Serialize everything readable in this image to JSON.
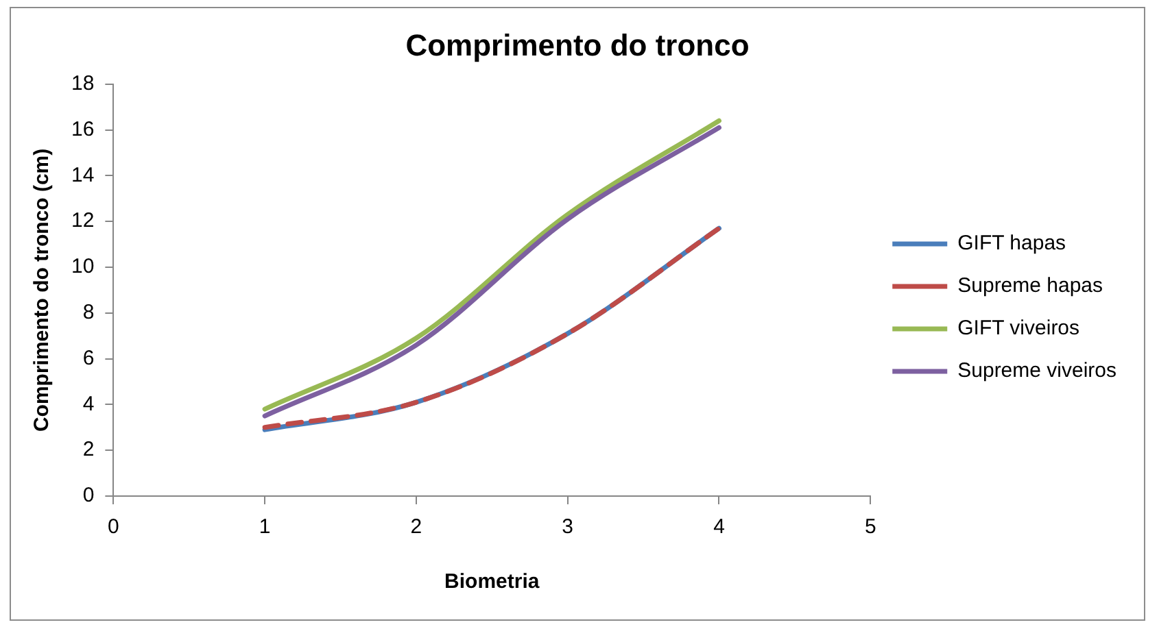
{
  "chart_data": {
    "type": "line",
    "title": "Comprimento do tronco",
    "xlabel": "Biometria",
    "ylabel": "Comprimento do tronco (cm)",
    "x": [
      1,
      2,
      3,
      4
    ],
    "series": [
      {
        "name": "GIFT hapas",
        "color": "#4a7ebb",
        "values": [
          2.9,
          4.1,
          7.1,
          11.7
        ]
      },
      {
        "name": "Supreme hapas",
        "color": "#be4b48",
        "values": [
          3.0,
          4.1,
          7.1,
          11.7
        ],
        "line_style": "dashed"
      },
      {
        "name": "GIFT viveiros",
        "color": "#98b954",
        "values": [
          3.8,
          6.9,
          12.3,
          16.4
        ]
      },
      {
        "name": "Supreme viveiros",
        "color": "#7d60a0",
        "values": [
          3.5,
          6.6,
          12.1,
          16.1
        ]
      }
    ],
    "xlim": [
      0,
      5
    ],
    "xticks": [
      0,
      1,
      2,
      3,
      4,
      5
    ],
    "ylim": [
      0,
      18
    ],
    "yticks": [
      0,
      2,
      4,
      6,
      8,
      10,
      12,
      14,
      16,
      18
    ],
    "grid": false,
    "legend": "right",
    "marker": "none",
    "line_style": "solid"
  }
}
